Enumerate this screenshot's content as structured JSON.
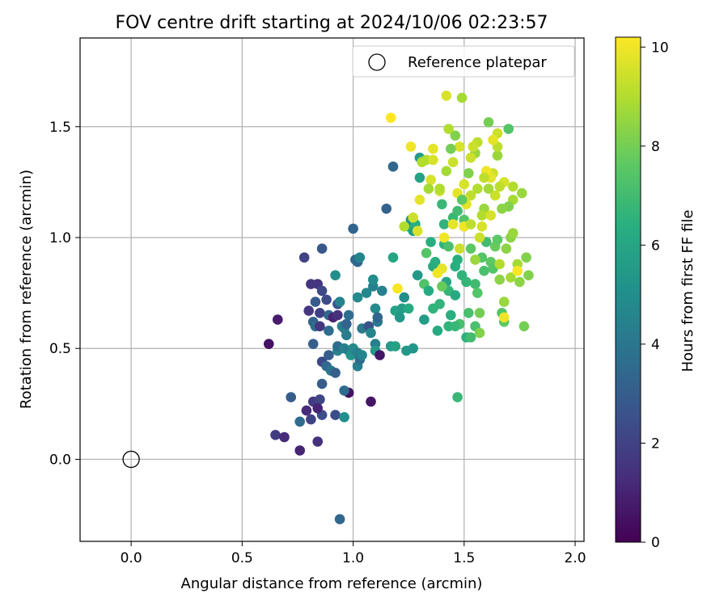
{
  "chart_data": {
    "type": "scatter",
    "title": "FOV centre drift starting at 2024/10/06 02:23:57",
    "xlabel": "Angular distance from reference (arcmin)",
    "ylabel": "Rotation from reference (arcmin)",
    "xlim": [
      -0.23,
      2.04
    ],
    "ylim": [
      -0.37,
      1.9
    ],
    "xticks": [
      0.0,
      0.5,
      1.0,
      1.5,
      2.0
    ],
    "xtick_labels": [
      "0.0",
      "0.5",
      "1.0",
      "1.5",
      "2.0"
    ],
    "yticks": [
      0.0,
      0.5,
      1.0,
      1.5
    ],
    "ytick_labels": [
      "0.0",
      "0.5",
      "1.0",
      "1.5"
    ],
    "grid": true,
    "legend": {
      "placement": "top-right",
      "entries": [
        "Reference platepar"
      ]
    },
    "reference_point": {
      "name": "Reference platepar",
      "x": 0.0,
      "y": 0.0
    },
    "colorbar": {
      "label": "Hours from first FF file",
      "range": [
        0,
        10.2
      ],
      "ticks": [
        0,
        2,
        4,
        6,
        8,
        10
      ],
      "tick_labels": [
        "0",
        "2",
        "4",
        "6",
        "8",
        "10"
      ],
      "colormap": "viridis"
    },
    "points": [
      [
        0.62,
        0.52,
        0.5
      ],
      [
        0.66,
        0.63,
        0.8
      ],
      [
        0.65,
        0.11,
        1.8
      ],
      [
        0.69,
        0.1,
        1.2
      ],
      [
        0.76,
        0.04,
        1.0
      ],
      [
        0.84,
        0.08,
        1.4
      ],
      [
        0.72,
        0.28,
        3.0
      ],
      [
        0.76,
        0.17,
        3.6
      ],
      [
        0.79,
        0.22,
        1.2
      ],
      [
        0.81,
        0.18,
        2.0
      ],
      [
        0.82,
        0.26,
        1.8
      ],
      [
        0.85,
        0.27,
        2.1
      ],
      [
        0.86,
        0.2,
        2.4
      ],
      [
        0.84,
        0.23,
        1.0
      ],
      [
        0.92,
        0.2,
        2.4
      ],
      [
        0.96,
        0.19,
        5.0
      ],
      [
        0.98,
        0.3,
        0.4
      ],
      [
        0.96,
        0.31,
        3.6
      ],
      [
        1.08,
        0.26,
        0.6
      ],
      [
        0.78,
        0.91,
        2.0
      ],
      [
        0.81,
        0.79,
        1.6
      ],
      [
        0.84,
        0.79,
        1.6
      ],
      [
        0.86,
        0.95,
        2.8
      ],
      [
        0.86,
        0.76,
        2.2
      ],
      [
        0.8,
        0.67,
        1.6
      ],
      [
        0.83,
        0.71,
        2.9
      ],
      [
        0.85,
        0.66,
        1.9
      ],
      [
        0.82,
        0.62,
        3.2
      ],
      [
        0.83,
        0.6,
        3.6
      ],
      [
        0.85,
        0.6,
        1.6
      ],
      [
        0.82,
        0.52,
        3.1
      ],
      [
        0.89,
        0.58,
        3.6
      ],
      [
        0.88,
        0.72,
        2.3
      ],
      [
        0.89,
        0.65,
        3.4
      ],
      [
        0.91,
        0.64,
        1.0
      ],
      [
        0.93,
        0.65,
        1.4
      ],
      [
        0.93,
        0.7,
        2.6
      ],
      [
        0.94,
        0.71,
        4.5
      ],
      [
        0.95,
        0.6,
        4.4
      ],
      [
        0.96,
        0.59,
        4.4
      ],
      [
        0.97,
        0.61,
        3.2
      ],
      [
        0.97,
        0.56,
        4.2
      ],
      [
        0.98,
        0.65,
        3.6
      ],
      [
        0.92,
        0.83,
        5.0
      ],
      [
        0.86,
        0.44,
        2.2
      ],
      [
        0.89,
        0.47,
        3.0
      ],
      [
        0.88,
        0.42,
        3.5
      ],
      [
        0.9,
        0.4,
        4.0
      ],
      [
        0.92,
        0.39,
        3.1
      ],
      [
        0.86,
        0.34,
        3.0
      ],
      [
        0.93,
        0.49,
        4.5
      ],
      [
        0.93,
        0.51,
        3.6
      ],
      [
        0.96,
        0.5,
        4.5
      ],
      [
        0.98,
        0.49,
        4.2
      ],
      [
        0.99,
        0.47,
        5.2
      ],
      [
        1.0,
        0.5,
        4.8
      ],
      [
        1.02,
        0.48,
        4.4
      ],
      [
        1.02,
        0.42,
        4.3
      ],
      [
        1.03,
        0.45,
        3.6
      ],
      [
        1.04,
        0.47,
        4.6
      ],
      [
        1.0,
        1.04,
        3.3
      ],
      [
        1.01,
        0.9,
        3.6
      ],
      [
        1.02,
        0.89,
        3.4
      ],
      [
        1.03,
        0.91,
        4.6
      ],
      [
        1.02,
        0.73,
        4.8
      ],
      [
        1.04,
        0.59,
        4.2
      ],
      [
        1.06,
        0.75,
        4.7
      ],
      [
        1.07,
        0.6,
        2.6
      ],
      [
        1.08,
        0.57,
        4.6
      ],
      [
        1.09,
        0.78,
        4.4
      ],
      [
        1.09,
        0.81,
        4.9
      ],
      [
        1.1,
        0.68,
        4.8
      ],
      [
        1.11,
        0.62,
        4.1
      ],
      [
        1.11,
        0.64,
        3.3
      ],
      [
        1.1,
        0.52,
        4.4
      ],
      [
        1.1,
        0.49,
        5.4
      ],
      [
        1.12,
        0.47,
        0.6
      ],
      [
        1.13,
        0.76,
        4.4
      ],
      [
        1.15,
        1.13,
        3.2
      ],
      [
        1.17,
        0.51,
        5.4
      ],
      [
        1.19,
        0.51,
        5.8
      ],
      [
        1.18,
        0.91,
        6.0
      ],
      [
        1.19,
        0.67,
        5.8
      ],
      [
        1.21,
        0.64,
        5.4
      ],
      [
        1.18,
        1.32,
        3.4
      ],
      [
        1.22,
        0.68,
        5.6
      ],
      [
        1.23,
        0.73,
        5.0
      ],
      [
        1.24,
        0.49,
        5.4
      ],
      [
        1.27,
        0.5,
        5.3
      ],
      [
        1.25,
        0.68,
        6.2
      ],
      [
        1.25,
        1.05,
        6.0
      ],
      [
        1.26,
        1.08,
        5.2
      ],
      [
        1.27,
        1.03,
        5.8
      ],
      [
        1.28,
        1.06,
        6.4
      ],
      [
        1.29,
        0.83,
        5.4
      ],
      [
        1.3,
        1.36,
        5.4
      ],
      [
        1.3,
        1.27,
        5.8
      ],
      [
        1.31,
        1.35,
        6.0
      ],
      [
        1.32,
        0.79,
        7.3
      ],
      [
        1.32,
        0.63,
        5.6
      ],
      [
        1.33,
        0.93,
        7.4
      ],
      [
        1.34,
        0.76,
        6.2
      ],
      [
        1.35,
        0.98,
        6.4
      ],
      [
        1.36,
        0.68,
        6.6
      ],
      [
        1.36,
        0.87,
        6.2
      ],
      [
        1.37,
        0.89,
        6.4
      ],
      [
        1.38,
        0.58,
        6.2
      ],
      [
        1.39,
        0.7,
        6.6
      ],
      [
        1.4,
        1.15,
        6.8
      ],
      [
        1.41,
        1.06,
        6.6
      ],
      [
        1.41,
        0.97,
        6.6
      ],
      [
        1.42,
        0.8,
        6.0
      ],
      [
        1.43,
        0.76,
        6.7
      ],
      [
        1.44,
        0.65,
        6.4
      ],
      [
        1.43,
        0.6,
        6.6
      ],
      [
        1.45,
        1.09,
        6.8
      ],
      [
        1.46,
        0.87,
        6.4
      ],
      [
        1.46,
        0.74,
        6.2
      ],
      [
        1.47,
        0.9,
        6.4
      ],
      [
        1.47,
        0.28,
        6.8
      ],
      [
        1.48,
        0.61,
        7.2
      ],
      [
        1.49,
        0.83,
        6.6
      ],
      [
        1.5,
        1.05,
        7.0
      ],
      [
        1.5,
        1.08,
        7.4
      ],
      [
        1.51,
        0.55,
        6.5
      ],
      [
        1.51,
        0.8,
        6.7
      ],
      [
        1.52,
        0.66,
        7.2
      ],
      [
        1.53,
        0.55,
        7.0
      ],
      [
        1.53,
        0.95,
        7.6
      ],
      [
        1.55,
        0.79,
        7.0
      ],
      [
        1.55,
        0.6,
        7.2
      ],
      [
        1.56,
        0.75,
        7.4
      ],
      [
        1.57,
        0.66,
        8.0
      ],
      [
        1.57,
        0.57,
        8.2
      ],
      [
        1.58,
        0.91,
        7.4
      ],
      [
        1.59,
        0.85,
        7.2
      ],
      [
        1.6,
        0.98,
        7.0
      ],
      [
        1.62,
        0.89,
        7.6
      ],
      [
        1.63,
        0.86,
        7.4
      ],
      [
        1.64,
        0.96,
        7.8
      ],
      [
        1.65,
        0.99,
        7.6
      ],
      [
        1.66,
        0.81,
        8.4
      ],
      [
        1.67,
        0.66,
        7.4
      ],
      [
        1.68,
        0.62,
        7.6
      ],
      [
        1.68,
        0.71,
        8.6
      ],
      [
        1.69,
        0.95,
        8.4
      ],
      [
        1.7,
        1.49,
        7.4
      ],
      [
        1.71,
        1.0,
        8.4
      ],
      [
        1.72,
        1.02,
        8.6
      ],
      [
        1.74,
        0.88,
        8.8
      ],
      [
        1.75,
        0.8,
        8.4
      ],
      [
        1.77,
        0.6,
        8.0
      ],
      [
        1.78,
        0.91,
        8.2
      ],
      [
        1.79,
        0.83,
        8.2
      ],
      [
        1.76,
        1.2,
        8.6
      ],
      [
        1.72,
        1.23,
        9.0
      ],
      [
        1.72,
        1.17,
        8.8
      ],
      [
        1.7,
        1.14,
        8.2
      ],
      [
        1.68,
        1.25,
        9.6
      ],
      [
        1.67,
        1.13,
        8.4
      ],
      [
        1.66,
        1.23,
        9.2
      ],
      [
        1.65,
        1.37,
        8.6
      ],
      [
        1.65,
        1.41,
        9.2
      ],
      [
        1.65,
        1.47,
        9.4
      ],
      [
        1.64,
        1.19,
        9.4
      ],
      [
        1.63,
        1.29,
        9.4
      ],
      [
        1.62,
        1.27,
        9.8
      ],
      [
        1.61,
        1.52,
        8.0
      ],
      [
        1.61,
        1.22,
        8.8
      ],
      [
        1.6,
        1.3,
        10.0
      ],
      [
        1.59,
        1.13,
        8.6
      ],
      [
        1.58,
        1.1,
        9.0
      ],
      [
        1.58,
        1.05,
        9.6
      ],
      [
        1.57,
        1.0,
        9.4
      ],
      [
        1.56,
        1.43,
        9.2
      ],
      [
        1.55,
        1.38,
        8.6
      ],
      [
        1.54,
        1.41,
        9.4
      ],
      [
        1.53,
        1.19,
        9.2
      ],
      [
        1.52,
        1.29,
        8.2
      ],
      [
        1.51,
        1.15,
        9.8
      ],
      [
        1.5,
        1.24,
        9.6
      ],
      [
        1.5,
        1.05,
        10.0
      ],
      [
        1.49,
        1.63,
        8.8
      ],
      [
        1.48,
        1.41,
        9.6
      ],
      [
        1.47,
        1.2,
        9.8
      ],
      [
        1.46,
        1.46,
        8.2
      ],
      [
        1.45,
        1.34,
        9.4
      ],
      [
        1.44,
        1.4,
        8.0
      ],
      [
        1.43,
        1.49,
        9.0
      ],
      [
        1.42,
        1.64,
        9.6
      ],
      [
        1.42,
        1.3,
        8.8
      ],
      [
        1.41,
        1.0,
        10.0
      ],
      [
        1.4,
        0.86,
        9.8
      ],
      [
        1.39,
        1.21,
        9.4
      ],
      [
        1.38,
        0.84,
        10.0
      ],
      [
        1.36,
        1.4,
        9.8
      ],
      [
        1.35,
        1.26,
        9.6
      ],
      [
        1.34,
        1.22,
        8.8
      ],
      [
        1.33,
        1.35,
        9.0
      ],
      [
        1.31,
        1.34,
        9.0
      ],
      [
        1.3,
        1.17,
        9.8
      ],
      [
        1.29,
        1.03,
        9.6
      ],
      [
        1.27,
        1.09,
        9.4
      ],
      [
        1.26,
        1.41,
        10.0
      ],
      [
        1.23,
        1.05,
        9.0
      ],
      [
        1.2,
        0.77,
        10.1
      ],
      [
        1.17,
        1.54,
        10.2
      ],
      [
        1.36,
        1.35,
        9.6
      ],
      [
        1.39,
        1.22,
        9.0
      ],
      [
        1.45,
        1.06,
        9.8
      ],
      [
        1.48,
        0.95,
        9.4
      ],
      [
        1.53,
        1.06,
        9.2
      ],
      [
        1.56,
        1.22,
        9.0
      ],
      [
        1.59,
        1.27,
        9.2
      ],
      [
        1.62,
        1.1,
        9.6
      ],
      [
        1.63,
        1.44,
        9.8
      ],
      [
        1.66,
        0.88,
        9.0
      ],
      [
        1.68,
        0.64,
        10.0
      ],
      [
        1.71,
        0.82,
        8.8
      ],
      [
        1.74,
        0.85,
        10.1
      ],
      [
        1.5,
        1.17,
        9.6
      ],
      [
        1.53,
        1.36,
        9.4
      ],
      [
        1.4,
        0.78,
        7.8
      ],
      [
        1.43,
        0.96,
        7.2
      ],
      [
        1.46,
        0.6,
        6.8
      ],
      [
        1.47,
        1.12,
        7.0
      ],
      [
        1.49,
        1.17,
        7.6
      ],
      [
        1.55,
        0.9,
        8.6
      ],
      [
        0.94,
        -0.27,
        3.4
      ]
    ]
  }
}
